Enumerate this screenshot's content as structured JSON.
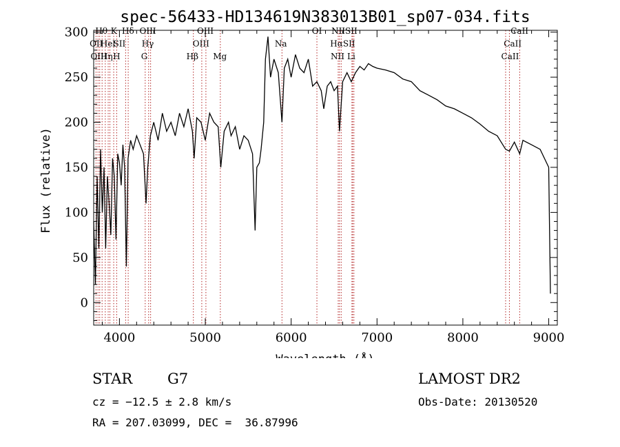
{
  "chart_data": {
    "type": "line",
    "title": "spec-56433-HD134619N383013B01_sp07-034.fits",
    "xlabel": "Wavelength (Å)",
    "ylabel": "Flux (relative)",
    "xlim": [
      3700,
      9100
    ],
    "ylim": [
      -25,
      302
    ],
    "x_ticks": [
      4000,
      5000,
      6000,
      7000,
      8000,
      9000
    ],
    "y_ticks": [
      0,
      50,
      100,
      150,
      200,
      250,
      300
    ],
    "grid": false,
    "series": [
      {
        "name": "flux",
        "points": [
          [
            3700,
            90
          ],
          [
            3720,
            20
          ],
          [
            3740,
            140
          ],
          [
            3760,
            60
          ],
          [
            3780,
            170
          ],
          [
            3800,
            100
          ],
          [
            3820,
            150
          ],
          [
            3840,
            60
          ],
          [
            3860,
            140
          ],
          [
            3880,
            110
          ],
          [
            3900,
            75
          ],
          [
            3920,
            160
          ],
          [
            3940,
            140
          ],
          [
            3960,
            70
          ],
          [
            3980,
            165
          ],
          [
            4000,
            155
          ],
          [
            4020,
            130
          ],
          [
            4040,
            175
          ],
          [
            4060,
            150
          ],
          [
            4080,
            40
          ],
          [
            4100,
            160
          ],
          [
            4130,
            180
          ],
          [
            4160,
            170
          ],
          [
            4200,
            185
          ],
          [
            4240,
            175
          ],
          [
            4280,
            165
          ],
          [
            4310,
            110
          ],
          [
            4330,
            150
          ],
          [
            4360,
            185
          ],
          [
            4400,
            200
          ],
          [
            4450,
            180
          ],
          [
            4500,
            210
          ],
          [
            4550,
            190
          ],
          [
            4600,
            200
          ],
          [
            4650,
            185
          ],
          [
            4700,
            210
          ],
          [
            4750,
            195
          ],
          [
            4800,
            215
          ],
          [
            4850,
            190
          ],
          [
            4870,
            160
          ],
          [
            4900,
            205
          ],
          [
            4950,
            200
          ],
          [
            5000,
            180
          ],
          [
            5050,
            210
          ],
          [
            5100,
            200
          ],
          [
            5150,
            195
          ],
          [
            5180,
            150
          ],
          [
            5220,
            190
          ],
          [
            5270,
            200
          ],
          [
            5300,
            185
          ],
          [
            5350,
            195
          ],
          [
            5400,
            170
          ],
          [
            5450,
            185
          ],
          [
            5500,
            180
          ],
          [
            5550,
            165
          ],
          [
            5580,
            80
          ],
          [
            5600,
            150
          ],
          [
            5630,
            155
          ],
          [
            5650,
            170
          ],
          [
            5680,
            200
          ],
          [
            5700,
            270
          ],
          [
            5730,
            295
          ],
          [
            5760,
            250
          ],
          [
            5800,
            270
          ],
          [
            5850,
            255
          ],
          [
            5893,
            200
          ],
          [
            5920,
            260
          ],
          [
            5960,
            270
          ],
          [
            6000,
            250
          ],
          [
            6050,
            275
          ],
          [
            6100,
            260
          ],
          [
            6150,
            255
          ],
          [
            6200,
            270
          ],
          [
            6250,
            240
          ],
          [
            6300,
            245
          ],
          [
            6350,
            235
          ],
          [
            6380,
            215
          ],
          [
            6420,
            240
          ],
          [
            6460,
            245
          ],
          [
            6500,
            235
          ],
          [
            6540,
            240
          ],
          [
            6563,
            190
          ],
          [
            6600,
            245
          ],
          [
            6650,
            255
          ],
          [
            6700,
            245
          ],
          [
            6750,
            255
          ],
          [
            6800,
            262
          ],
          [
            6850,
            258
          ],
          [
            6900,
            265
          ],
          [
            6950,
            262
          ],
          [
            7000,
            260
          ],
          [
            7100,
            258
          ],
          [
            7200,
            255
          ],
          [
            7300,
            248
          ],
          [
            7400,
            245
          ],
          [
            7500,
            235
          ],
          [
            7600,
            230
          ],
          [
            7700,
            225
          ],
          [
            7800,
            218
          ],
          [
            7900,
            215
          ],
          [
            8000,
            210
          ],
          [
            8100,
            205
          ],
          [
            8200,
            198
          ],
          [
            8300,
            190
          ],
          [
            8400,
            185
          ],
          [
            8498,
            170
          ],
          [
            8542,
            168
          ],
          [
            8600,
            178
          ],
          [
            8662,
            165
          ],
          [
            8700,
            180
          ],
          [
            8800,
            175
          ],
          [
            8900,
            170
          ],
          [
            8950,
            160
          ],
          [
            9000,
            150
          ],
          [
            9020,
            10
          ]
        ]
      }
    ],
    "lines": [
      {
        "x": 3727,
        "labels": [
          "OII"
        ]
      },
      {
        "x": 3750,
        "labels": [
          "OIII"
        ]
      },
      {
        "x": 3770,
        "labels": [
          "Hθ"
        ]
      },
      {
        "x": 3798,
        "labels": [
          "Hη"
        ]
      },
      {
        "x": 3835,
        "labels": [
          "Hη"
        ]
      },
      {
        "x": 3869,
        "labels": [
          "Hel"
        ]
      },
      {
        "x": 3889,
        "labels": [
          ""
        ]
      },
      {
        "x": 3933,
        "labels": [
          "K"
        ]
      },
      {
        "x": 3968,
        "labels": [
          "H"
        ]
      },
      {
        "x": 4072,
        "labels": [
          "SII"
        ]
      },
      {
        "x": 4102,
        "labels": [
          "Hδ"
        ]
      },
      {
        "x": 4300,
        "labels": [
          "G"
        ]
      },
      {
        "x": 4340,
        "labels": [
          "Hγ"
        ]
      },
      {
        "x": 4363,
        "labels": [
          "OIII"
        ]
      },
      {
        "x": 4861,
        "labels": [
          "Hβ"
        ]
      },
      {
        "x": 4959,
        "labels": [
          "OIII"
        ]
      },
      {
        "x": 5007,
        "labels": [
          "OIII"
        ]
      },
      {
        "x": 5175,
        "labels": [
          "Mg"
        ]
      },
      {
        "x": 5893,
        "labels": [
          "Na"
        ]
      },
      {
        "x": 6300,
        "labels": [
          "OI"
        ]
      },
      {
        "x": 6548,
        "labels": [
          "NII"
        ]
      },
      {
        "x": 6563,
        "labels": [
          "Hα"
        ]
      },
      {
        "x": 6583,
        "labels": [
          "NII"
        ]
      },
      {
        "x": 6708,
        "labels": [
          "Li"
        ]
      },
      {
        "x": 6716,
        "labels": [
          "SII"
        ]
      },
      {
        "x": 6731,
        "labels": [
          "SII"
        ]
      },
      {
        "x": 8498,
        "labels": [
          "CaII"
        ]
      },
      {
        "x": 8542,
        "labels": [
          "CaII"
        ]
      },
      {
        "x": 8662,
        "labels": [
          "CaII"
        ]
      }
    ],
    "annotations": [
      {
        "text": "OII",
        "x": 3730,
        "y": 284
      },
      {
        "text": "OIII",
        "x": 3760,
        "y": 270
      },
      {
        "text": "Hθ",
        "x": 3790,
        "y": 298
      },
      {
        "text": "Hel",
        "x": 3865,
        "y": 284
      },
      {
        "text": "Hη",
        "x": 3850,
        "y": 270
      },
      {
        "text": "K",
        "x": 3935,
        "y": 298
      },
      {
        "text": "H",
        "x": 3968,
        "y": 270
      },
      {
        "text": "SII",
        "x": 4000,
        "y": 284
      },
      {
        "text": "Hδ",
        "x": 4100,
        "y": 298
      },
      {
        "text": "OIII",
        "x": 4330,
        "y": 298
      },
      {
        "text": "Hγ",
        "x": 4330,
        "y": 284
      },
      {
        "text": "G",
        "x": 4290,
        "y": 270
      },
      {
        "text": "OIII",
        "x": 5000,
        "y": 298
      },
      {
        "text": "OIII",
        "x": 4950,
        "y": 284
      },
      {
        "text": "Hβ",
        "x": 4850,
        "y": 270
      },
      {
        "text": "Mg",
        "x": 5170,
        "y": 270
      },
      {
        "text": "Na",
        "x": 5880,
        "y": 284
      },
      {
        "text": "OI",
        "x": 6300,
        "y": 298
      },
      {
        "text": "NIISII",
        "x": 6620,
        "y": 298
      },
      {
        "text": "HαSII",
        "x": 6600,
        "y": 284
      },
      {
        "text": "NII",
        "x": 6540,
        "y": 270
      },
      {
        "text": "Li",
        "x": 6700,
        "y": 270
      },
      {
        "text": "CaII",
        "x": 8660,
        "y": 298
      },
      {
        "text": "CaII",
        "x": 8580,
        "y": 284
      },
      {
        "text": "CaII",
        "x": 8550,
        "y": 270
      }
    ]
  },
  "footer": {
    "object_class": "STAR",
    "subclass": "G7",
    "survey": "LAMOST DR2",
    "redshift": "cz = −12.5 ± 2.8 km/s",
    "obs_date": "Obs-Date: 20130520",
    "coords": "RA = 207.03099, DEC =  36.87996"
  }
}
